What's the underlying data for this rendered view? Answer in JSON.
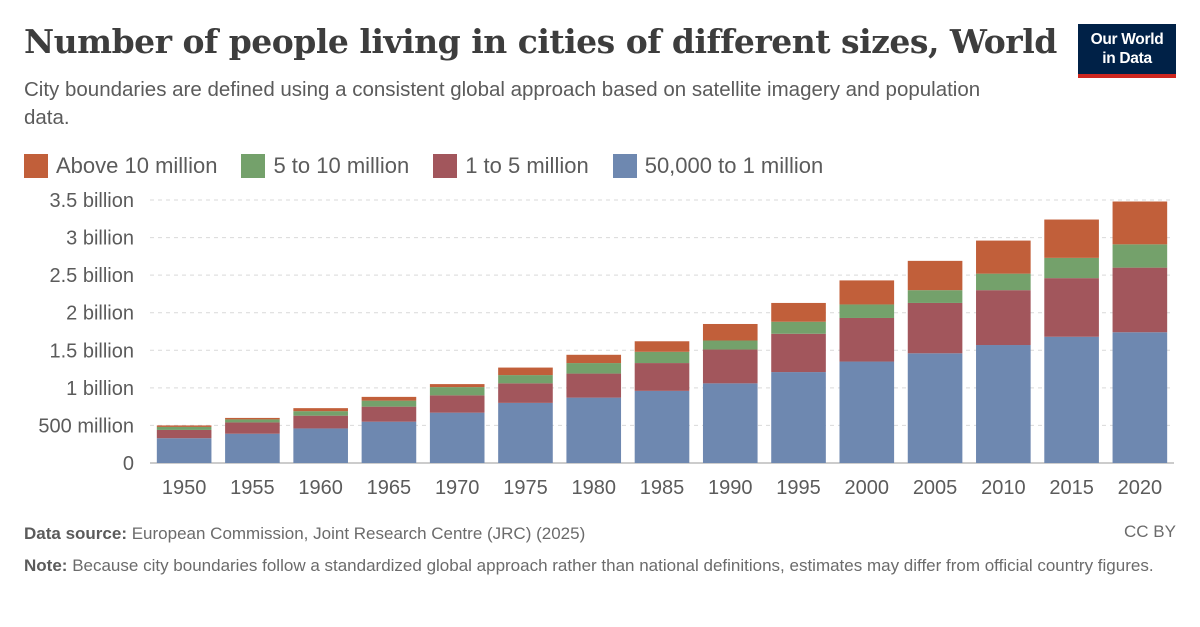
{
  "header": {
    "title": "Number of people living in cities of different sizes, World",
    "subtitle": "City boundaries are defined using a consistent global approach based on satellite imagery and population data.",
    "logo_line1": "Our World",
    "logo_line2": "in Data"
  },
  "footer": {
    "source_label": "Data source:",
    "source_text": "European Commission, Joint Research Centre (JRC) (2025)",
    "license": "CC BY",
    "note_label": "Note:",
    "note_text": "Because city boundaries follow a standardized global approach rather than national definitions, estimates may differ from official country figures."
  },
  "colors": {
    "above_10m": "#c15f3a",
    "5_to_10m": "#74a16b",
    "1_to_5m": "#a2565c",
    "50k_to_1m": "#6e88b0",
    "grid": "#d9d9d9",
    "axis_text": "#5b5b5b"
  },
  "chart_data": {
    "type": "bar",
    "stacked": true,
    "categories": [
      "1950",
      "1955",
      "1960",
      "1965",
      "1970",
      "1975",
      "1980",
      "1985",
      "1990",
      "1995",
      "2000",
      "2005",
      "2010",
      "2015",
      "2020"
    ],
    "series": [
      {
        "name": "50,000 to 1 million",
        "color": "#6e88b0",
        "values": [
          0.33,
          0.39,
          0.46,
          0.55,
          0.67,
          0.8,
          0.87,
          0.96,
          1.06,
          1.21,
          1.35,
          1.46,
          1.57,
          1.68,
          1.74
        ]
      },
      {
        "name": "1 to 5 million",
        "color": "#a2565c",
        "values": [
          0.11,
          0.15,
          0.17,
          0.2,
          0.23,
          0.26,
          0.32,
          0.37,
          0.45,
          0.51,
          0.58,
          0.67,
          0.73,
          0.78,
          0.86
        ]
      },
      {
        "name": "5 to 10 million",
        "color": "#74a16b",
        "values": [
          0.04,
          0.04,
          0.06,
          0.08,
          0.11,
          0.11,
          0.14,
          0.15,
          0.12,
          0.16,
          0.18,
          0.17,
          0.22,
          0.27,
          0.31
        ]
      },
      {
        "name": "Above 10 million",
        "color": "#c15f3a",
        "values": [
          0.02,
          0.02,
          0.04,
          0.05,
          0.04,
          0.1,
          0.11,
          0.14,
          0.22,
          0.25,
          0.32,
          0.39,
          0.44,
          0.51,
          0.57
        ]
      }
    ],
    "legend_order": [
      "Above 10 million",
      "5 to 10 million",
      "1 to 5 million",
      "50,000 to 1 million"
    ],
    "yticks": [
      0,
      0.5,
      1,
      1.5,
      2,
      2.5,
      3,
      3.5
    ],
    "ytick_labels": [
      "0",
      "500 million",
      "1 billion",
      "1.5 billion",
      "2 billion",
      "2.5 billion",
      "3 billion",
      "3.5 billion"
    ],
    "ylim": [
      0,
      3.5
    ],
    "ylabel": "",
    "xlabel": "",
    "grid": true,
    "legend_position": "top-left"
  }
}
